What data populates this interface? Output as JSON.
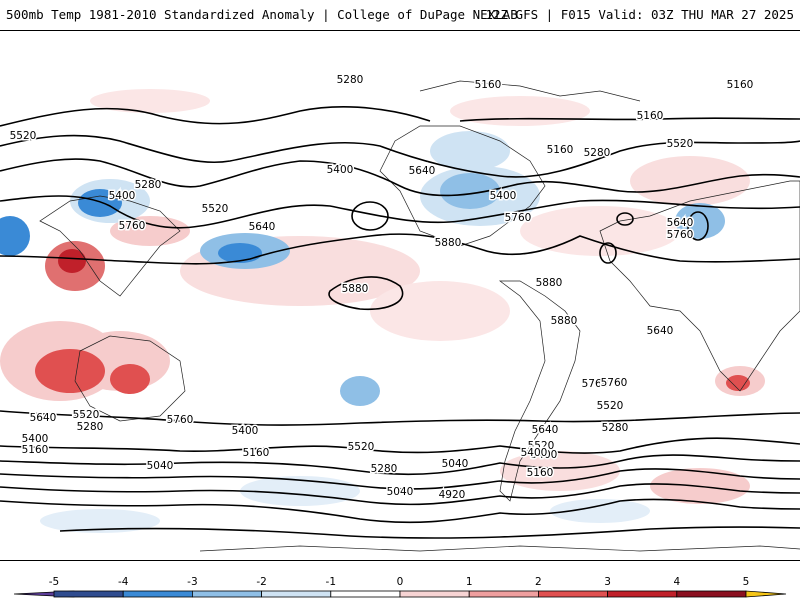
{
  "header": {
    "title_left": "500mb Temp 1981-2010 Standardized Anomaly | College of DuPage NEXLAB",
    "title_right": "12Z GFS | F015 Valid: 03Z THU MAR 27 2025"
  },
  "map": {
    "contour_labels": [
      "5280",
      "5160",
      "5160",
      "5160",
      "5160",
      "5520",
      "5520",
      "5280",
      "5280",
      "5400",
      "5400",
      "5520",
      "5640",
      "5640",
      "5640",
      "5400",
      "5760",
      "5760",
      "5760",
      "5880",
      "5880",
      "5880",
      "5880",
      "5760",
      "5760",
      "5640",
      "5520",
      "5280",
      "5400",
      "5160",
      "5640",
      "5520",
      "5400",
      "5160",
      "5040",
      "5040",
      "4920",
      "5280",
      "5400",
      "5520",
      "5640",
      "5760",
      "5520",
      "5280",
      "5040",
      "5400",
      "5160"
    ]
  },
  "colorbar": {
    "ticks": [
      "-5",
      "-4",
      "-3",
      "-2",
      "-1",
      "0",
      "1",
      "2",
      "3",
      "4",
      "5"
    ],
    "colors": [
      "#5c3d99",
      "#2f4c8f",
      "#3a8ad6",
      "#8fbfe6",
      "#cfe3f3",
      "#ffffff",
      "#f7d4d4",
      "#ef9f9f",
      "#e05050",
      "#c0202a",
      "#8b1020",
      "#f5c518"
    ]
  }
}
